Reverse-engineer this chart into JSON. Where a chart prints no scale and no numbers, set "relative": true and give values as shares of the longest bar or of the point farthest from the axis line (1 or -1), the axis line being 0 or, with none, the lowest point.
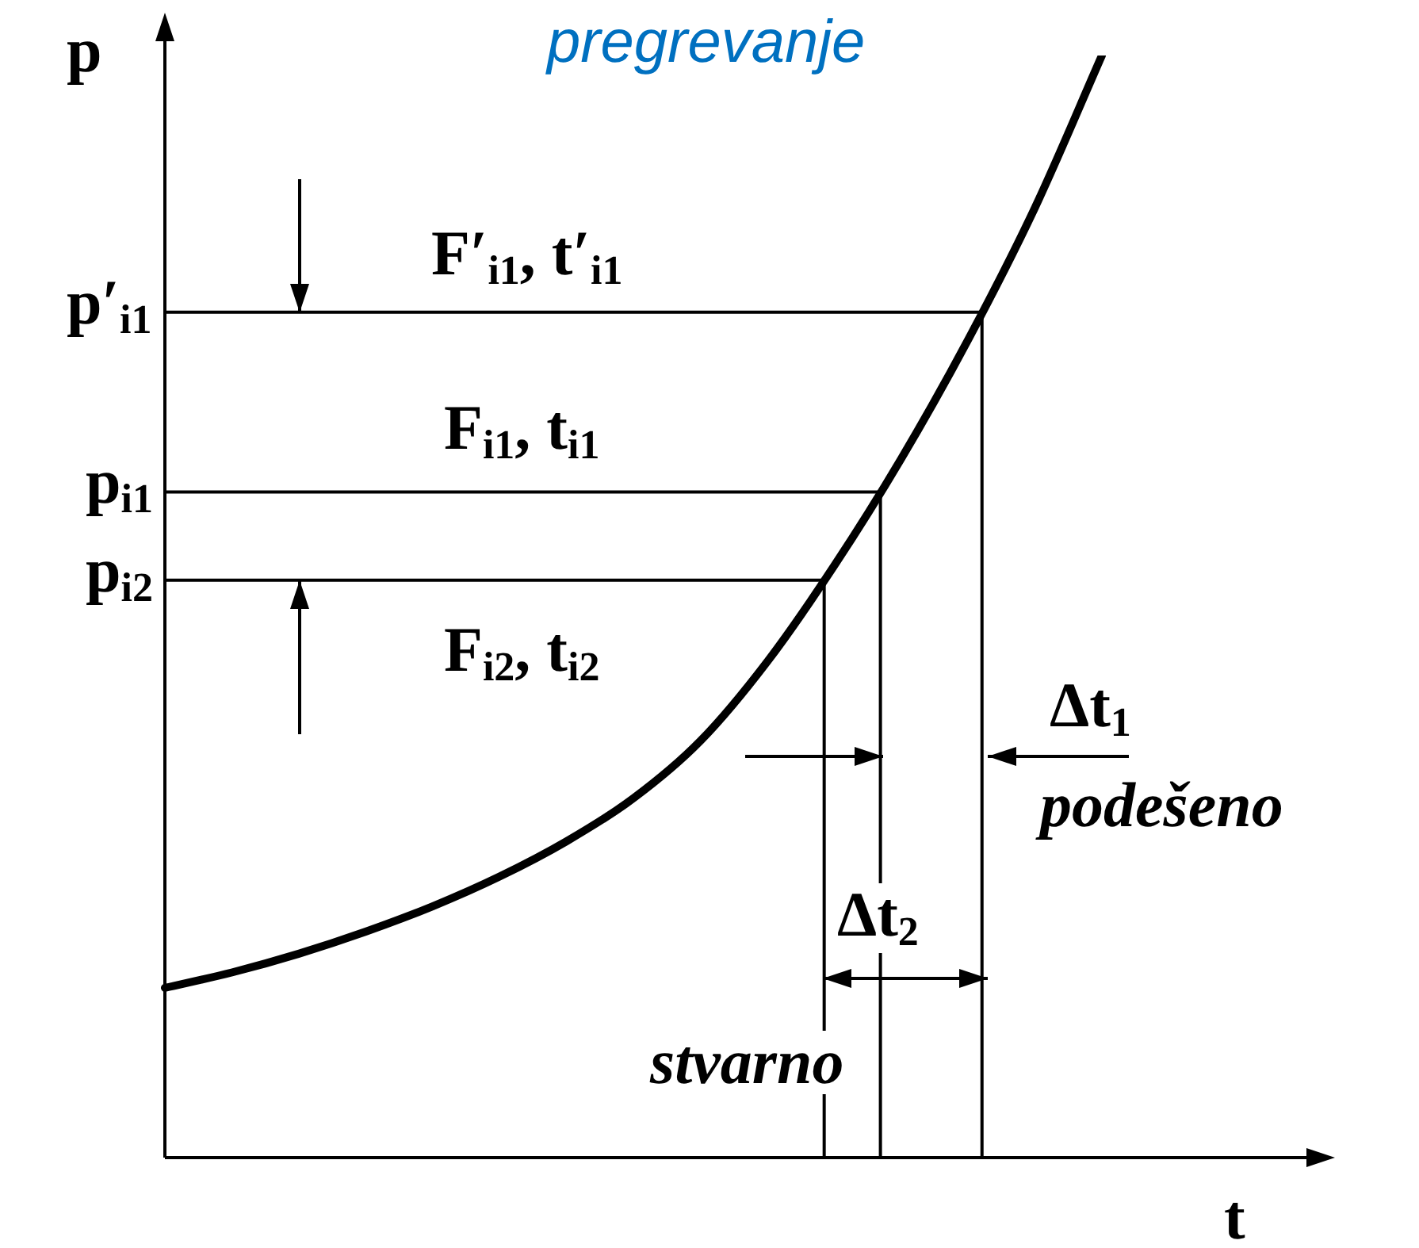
{
  "chart_data": {
    "type": "line",
    "relative": true,
    "xlabel": "t",
    "ylabel": "p",
    "categories": [
      null,
      null,
      null,
      null,
      null,
      null,
      null,
      null,
      null,
      null,
      null,
      null,
      null,
      null,
      null
    ],
    "series": [
      {
        "color": "#000000",
        "values": [
          0.154,
          0.168,
          0.185,
          0.205,
          0.228,
          0.255,
          0.287,
          0.326,
          0.378,
          0.45,
          0.537,
          0.634,
          0.742,
          0.862,
          1
        ]
      }
    ],
    "ref_lines": [
      {
        "axis": "y",
        "value": 0.767,
        "label": "p′$_{i1}$"
      },
      {
        "axis": "y",
        "value": 0.604,
        "label": "p$_{i1}$"
      },
      {
        "axis": "y",
        "value": 0.524,
        "label": "p$_{i2}$"
      }
    ],
    "annotations": [
      "pregrevanje",
      "F′$_{i1}$, t′$_{i1}$",
      "F$_{i1}$, t$_{i1}$",
      "F$_{i2}$, t$_{i2}$",
      "Δt$_{1}$",
      "podešeno",
      "Δt$_{2}$",
      "stvarno"
    ],
    "legend": false,
    "tick_labels": false,
    "marker": "none",
    "line_style": "solid"
  }
}
